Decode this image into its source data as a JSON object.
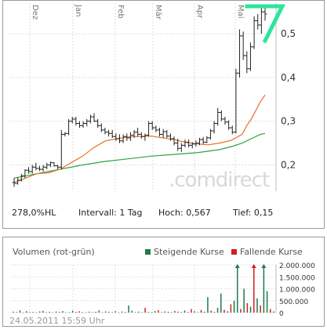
{
  "chart_data": [
    {
      "type": "ohlc",
      "months": [
        "Dez",
        "Jan",
        "Feb",
        "Mär",
        "Apr",
        "Mai"
      ],
      "y_ticks": [
        "0,5",
        "0,4",
        "0,3",
        "0,2"
      ],
      "ylim": [
        0.14,
        0.57
      ],
      "watermark": ".comdirect",
      "indicator_colors": {
        "ma_short": "#e8712a",
        "ma_long": "#2fa33f",
        "bars": "#222222",
        "logo": "#2ee59a"
      },
      "moving_average_38": [
        [
          0,
          0.16
        ],
        [
          5,
          0.17
        ],
        [
          10,
          0.18
        ],
        [
          15,
          0.182
        ],
        [
          20,
          0.19
        ],
        [
          25,
          0.205
        ],
        [
          30,
          0.22
        ],
        [
          35,
          0.24
        ],
        [
          40,
          0.255
        ],
        [
          45,
          0.26
        ],
        [
          50,
          0.264
        ],
        [
          55,
          0.265
        ],
        [
          60,
          0.266
        ],
        [
          65,
          0.262
        ],
        [
          70,
          0.258
        ],
        [
          75,
          0.252
        ],
        [
          80,
          0.248
        ],
        [
          85,
          0.246
        ],
        [
          90,
          0.25
        ],
        [
          95,
          0.256
        ],
        [
          100,
          0.27
        ],
        [
          102,
          0.29
        ],
        [
          104,
          0.305
        ],
        [
          106,
          0.325
        ],
        [
          108,
          0.345
        ],
        [
          110,
          0.36
        ]
      ],
      "moving_average_100": [
        [
          0,
          0.17
        ],
        [
          10,
          0.18
        ],
        [
          20,
          0.19
        ],
        [
          30,
          0.2
        ],
        [
          40,
          0.208
        ],
        [
          50,
          0.214
        ],
        [
          60,
          0.22
        ],
        [
          70,
          0.224
        ],
        [
          80,
          0.228
        ],
        [
          90,
          0.235
        ],
        [
          96,
          0.243
        ],
        [
          100,
          0.25
        ],
        [
          104,
          0.26
        ],
        [
          108,
          0.27
        ],
        [
          110,
          0.272
        ]
      ],
      "ohlc": [
        [
          0,
          0.16,
          0.17,
          0.15,
          0.158
        ],
        [
          1,
          0.158,
          0.172,
          0.155,
          0.165
        ],
        [
          2,
          0.165,
          0.18,
          0.162,
          0.175
        ],
        [
          3,
          0.175,
          0.19,
          0.17,
          0.188
        ],
        [
          4,
          0.188,
          0.195,
          0.18,
          0.185
        ],
        [
          5,
          0.185,
          0.2,
          0.18,
          0.195
        ],
        [
          6,
          0.195,
          0.205,
          0.188,
          0.192
        ],
        [
          7,
          0.192,
          0.198,
          0.186,
          0.19
        ],
        [
          8,
          0.19,
          0.2,
          0.185,
          0.195
        ],
        [
          9,
          0.195,
          0.205,
          0.19,
          0.2
        ],
        [
          10,
          0.2,
          0.208,
          0.195,
          0.205
        ],
        [
          11,
          0.205,
          0.206,
          0.196,
          0.198
        ],
        [
          12,
          0.198,
          0.2,
          0.19,
          0.195
        ],
        [
          13,
          0.195,
          0.28,
          0.19,
          0.27
        ],
        [
          14,
          0.27,
          0.275,
          0.265,
          0.272
        ],
        [
          15,
          0.272,
          0.305,
          0.268,
          0.3
        ],
        [
          16,
          0.3,
          0.31,
          0.295,
          0.305
        ],
        [
          17,
          0.305,
          0.31,
          0.29,
          0.295
        ],
        [
          18,
          0.295,
          0.3,
          0.285,
          0.29
        ],
        [
          19,
          0.29,
          0.3,
          0.285,
          0.295
        ],
        [
          20,
          0.295,
          0.305,
          0.288,
          0.3
        ],
        [
          21,
          0.3,
          0.315,
          0.295,
          0.31
        ],
        [
          22,
          0.31,
          0.318,
          0.298,
          0.3
        ],
        [
          23,
          0.3,
          0.305,
          0.285,
          0.29
        ],
        [
          24,
          0.29,
          0.295,
          0.275,
          0.28
        ],
        [
          25,
          0.28,
          0.285,
          0.27,
          0.275
        ],
        [
          26,
          0.275,
          0.28,
          0.265,
          0.272
        ],
        [
          27,
          0.272,
          0.28,
          0.262,
          0.265
        ],
        [
          28,
          0.265,
          0.272,
          0.255,
          0.26
        ],
        [
          29,
          0.26,
          0.27,
          0.25,
          0.255
        ],
        [
          30,
          0.255,
          0.27,
          0.25,
          0.265
        ],
        [
          31,
          0.265,
          0.272,
          0.255,
          0.262
        ],
        [
          32,
          0.262,
          0.275,
          0.255,
          0.268
        ],
        [
          33,
          0.268,
          0.28,
          0.262,
          0.275
        ],
        [
          34,
          0.275,
          0.285,
          0.265,
          0.27
        ],
        [
          35,
          0.27,
          0.275,
          0.26,
          0.265
        ],
        [
          36,
          0.265,
          0.272,
          0.255,
          0.268
        ],
        [
          37,
          0.268,
          0.3,
          0.265,
          0.295
        ],
        [
          38,
          0.295,
          0.3,
          0.28,
          0.285
        ],
        [
          39,
          0.285,
          0.29,
          0.275,
          0.28
        ],
        [
          40,
          0.28,
          0.285,
          0.265,
          0.27
        ],
        [
          41,
          0.27,
          0.282,
          0.262,
          0.276
        ],
        [
          42,
          0.276,
          0.28,
          0.262,
          0.266
        ],
        [
          43,
          0.266,
          0.272,
          0.255,
          0.26
        ],
        [
          44,
          0.26,
          0.265,
          0.245,
          0.25
        ],
        [
          45,
          0.25,
          0.26,
          0.232,
          0.238
        ],
        [
          46,
          0.238,
          0.25,
          0.23,
          0.245
        ],
        [
          47,
          0.245,
          0.258,
          0.24,
          0.252
        ],
        [
          48,
          0.252,
          0.258,
          0.24,
          0.245
        ],
        [
          49,
          0.245,
          0.252,
          0.238,
          0.248
        ],
        [
          50,
          0.248,
          0.256,
          0.242,
          0.25
        ],
        [
          51,
          0.25,
          0.262,
          0.245,
          0.258
        ],
        [
          52,
          0.258,
          0.264,
          0.248,
          0.252
        ],
        [
          53,
          0.252,
          0.266,
          0.25,
          0.262
        ],
        [
          54,
          0.262,
          0.282,
          0.258,
          0.278
        ],
        [
          55,
          0.278,
          0.3,
          0.272,
          0.295
        ],
        [
          56,
          0.295,
          0.33,
          0.29,
          0.32
        ],
        [
          57,
          0.32,
          0.325,
          0.3,
          0.305
        ],
        [
          58,
          0.305,
          0.31,
          0.292,
          0.298
        ],
        [
          59,
          0.298,
          0.302,
          0.28,
          0.285
        ],
        [
          60,
          0.285,
          0.29,
          0.27,
          0.275
        ],
        [
          61,
          0.275,
          0.42,
          0.272,
          0.41
        ],
        [
          62,
          0.41,
          0.51,
          0.4,
          0.495
        ],
        [
          63,
          0.495,
          0.505,
          0.44,
          0.45
        ],
        [
          64,
          0.45,
          0.46,
          0.41,
          0.42
        ],
        [
          65,
          0.42,
          0.48,
          0.415,
          0.47
        ],
        [
          66,
          0.47,
          0.54,
          0.465,
          0.53
        ],
        [
          67,
          0.53,
          0.545,
          0.51,
          0.52
        ],
        [
          68,
          0.52,
          0.567,
          0.5,
          0.55
        ],
        [
          69,
          0.55,
          0.56,
          0.53,
          0.545
        ]
      ]
    },
    {
      "type": "bar",
      "title": "Volumen (rot-grün)",
      "legend": [
        {
          "label": "Steigende Kurse",
          "color": "#1f7a4c"
        },
        {
          "label": "Fallende Kurse",
          "color": "#d02020"
        }
      ],
      "y_ticks": [
        "2.000.000",
        "1.500.000",
        "1.000.000",
        "500.000",
        "0"
      ],
      "ylim": [
        0,
        2000000
      ],
      "timestamp": "24.05.2011 15:59 Uhr",
      "values": [
        [
          40000,
          0
        ],
        [
          20000,
          1
        ],
        [
          90000,
          0
        ],
        [
          10000,
          0
        ],
        [
          60000,
          1
        ],
        [
          25000,
          0
        ],
        [
          30000,
          0
        ],
        [
          15000,
          1
        ],
        [
          50000,
          0
        ],
        [
          70000,
          1
        ],
        [
          20000,
          0
        ],
        [
          35000,
          0
        ],
        [
          10000,
          1
        ],
        [
          45000,
          0
        ],
        [
          25000,
          0
        ],
        [
          60000,
          1
        ],
        [
          15000,
          0
        ],
        [
          20000,
          0
        ],
        [
          80000,
          0
        ],
        [
          30000,
          1
        ],
        [
          55000,
          1
        ],
        [
          25000,
          0
        ],
        [
          10000,
          0
        ],
        [
          40000,
          1
        ],
        [
          20000,
          0
        ],
        [
          35000,
          1
        ],
        [
          90000,
          0
        ],
        [
          15000,
          0
        ],
        [
          50000,
          0
        ],
        [
          30000,
          1
        ],
        [
          20000,
          0
        ],
        [
          60000,
          0
        ],
        [
          10000,
          1
        ],
        [
          45000,
          0
        ],
        [
          25000,
          1
        ],
        [
          300000,
          0
        ],
        [
          80000,
          0
        ],
        [
          20000,
          1
        ],
        [
          40000,
          0
        ],
        [
          15000,
          0
        ],
        [
          200000,
          1
        ],
        [
          30000,
          0
        ],
        [
          25000,
          0
        ],
        [
          60000,
          0
        ],
        [
          100000,
          1
        ],
        [
          20000,
          0
        ],
        [
          50000,
          0
        ],
        [
          35000,
          1
        ],
        [
          15000,
          0
        ],
        [
          70000,
          0
        ],
        [
          40000,
          1
        ],
        [
          25000,
          0
        ],
        [
          90000,
          0
        ],
        [
          30000,
          0
        ],
        [
          150000,
          1
        ],
        [
          60000,
          0
        ],
        [
          20000,
          0
        ],
        [
          110000,
          1
        ],
        [
          40000,
          0
        ],
        [
          650000,
          0
        ],
        [
          80000,
          1
        ],
        [
          30000,
          0
        ],
        [
          200000,
          0
        ],
        [
          800000,
          0
        ],
        [
          120000,
          1
        ],
        [
          60000,
          0
        ],
        [
          350000,
          1
        ],
        [
          500000,
          0
        ],
        [
          2000000,
          0
        ],
        [
          150000,
          1
        ],
        [
          1000000,
          0
        ],
        [
          400000,
          1
        ],
        [
          250000,
          0
        ],
        [
          2000000,
          1
        ],
        [
          600000,
          0
        ],
        [
          300000,
          1
        ],
        [
          2000000,
          0
        ],
        [
          900000,
          0
        ],
        [
          150000,
          1
        ],
        [
          50000,
          0
        ]
      ]
    }
  ],
  "stats": {
    "perf": "278,0%HL",
    "interval_label": "Intervall:",
    "interval_value": "1 Tag",
    "high_label": "Hoch:",
    "high_value": "0,567",
    "low_label": "Tief:",
    "low_value": "0,15"
  }
}
